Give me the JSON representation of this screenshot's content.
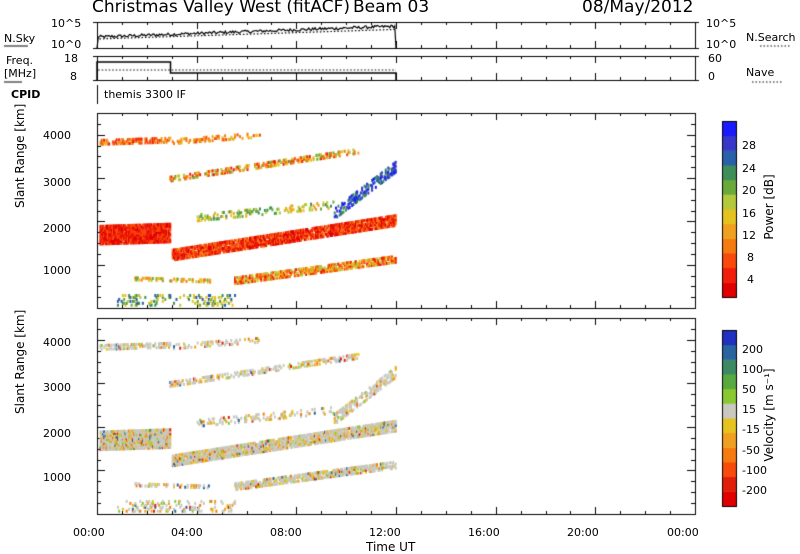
{
  "header": {
    "radar": "Christmas Valley West (fitACF)",
    "beam": "Beam 03",
    "date": "08/May/2012"
  },
  "nsky_panel": {
    "label_left": "N.Sky",
    "label_right": "N.Search",
    "left_ticks": [
      "10^5",
      "10^0"
    ],
    "right_ticks": [
      "10^5",
      "10^0"
    ]
  },
  "freq_panel": {
    "label_left_1": "Freq.",
    "label_left_2": "[MHz]",
    "label_right": "Nave",
    "left_ticks": [
      "18",
      "8"
    ],
    "right_ticks": [
      "60",
      "0"
    ]
  },
  "cpid": {
    "label": "CPID",
    "text": "themis 3300 IF"
  },
  "power_panel": {
    "ylabel": "Slant Range [km]",
    "yticks": [
      "4000",
      "3000",
      "2000",
      "1000"
    ],
    "colorbar_label": "Power [dB]",
    "colorbar_ticks": [
      "28",
      "24",
      "20",
      "16",
      "12",
      "8",
      "4"
    ],
    "colors": [
      "#1a1aff",
      "#3838c8",
      "#2a5faa",
      "#3e8e5a",
      "#6aaa3a",
      "#b4c83c",
      "#e6c21e",
      "#f0a020",
      "#f57a10",
      "#f84a0a",
      "#f01e0a",
      "#e00000"
    ]
  },
  "velocity_panel": {
    "ylabel": "Slant Range [km]",
    "yticks": [
      "4000",
      "3000",
      "2000",
      "1000"
    ],
    "colorbar_label": "Velocity [m s⁻¹]",
    "colorbar_ticks": [
      "200",
      "100",
      "50",
      "15",
      "-15",
      "-50",
      "-100",
      "-200"
    ],
    "colors": [
      "#2030c0",
      "#2a64a0",
      "#3c8a64",
      "#58aa40",
      "#8ac832",
      "#c8c8c0",
      "#e6c21e",
      "#f0a020",
      "#f57a10",
      "#f84a0a",
      "#e01e0a",
      "#e00000"
    ]
  },
  "xaxis": {
    "ticks": [
      "00:00",
      "04:00",
      "08:00",
      "12:00",
      "16:00",
      "20:00",
      "00:00"
    ],
    "label": "Time UT"
  },
  "chart_data": {
    "type": "heatmap",
    "x_range_hours": [
      0,
      24
    ],
    "y_range_km": [
      0,
      4500
    ],
    "data_end_hour": 12,
    "freq_step": {
      "x_hours": [
        0,
        3,
        12
      ],
      "freq_mhz": [
        15.5,
        10.5
      ]
    }
  }
}
